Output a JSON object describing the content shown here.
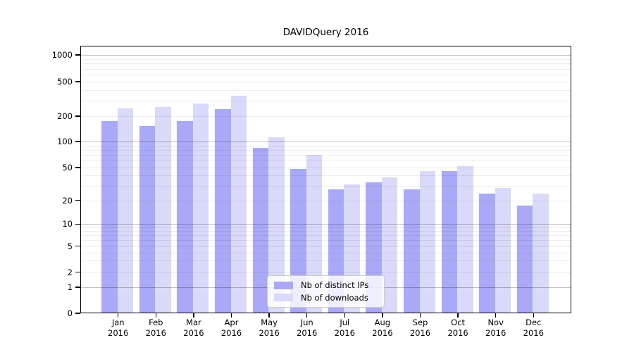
{
  "title": "DAVIDQuery 2016",
  "chart_data": {
    "type": "bar",
    "title": "DAVIDQuery 2016",
    "yscale": "symlog",
    "grid": true,
    "legend_position": "lower-center",
    "ylim": [
      0,
      1400
    ],
    "categories": [
      {
        "month": "Jan",
        "year": "2016"
      },
      {
        "month": "Feb",
        "year": "2016"
      },
      {
        "month": "Mar",
        "year": "2016"
      },
      {
        "month": "Apr",
        "year": "2016"
      },
      {
        "month": "May",
        "year": "2016"
      },
      {
        "month": "Jun",
        "year": "2016"
      },
      {
        "month": "Jul",
        "year": "2016"
      },
      {
        "month": "Aug",
        "year": "2016"
      },
      {
        "month": "Sep",
        "year": "2016"
      },
      {
        "month": "Oct",
        "year": "2016"
      },
      {
        "month": "Nov",
        "year": "2016"
      },
      {
        "month": "Dec",
        "year": "2016"
      }
    ],
    "series": [
      {
        "name": "Nb of distinct IPs",
        "color": "#a9a9f8",
        "values": [
          175,
          152,
          175,
          242,
          84,
          48,
          27,
          33,
          27,
          45,
          24,
          17
        ]
      },
      {
        "name": "Nb of downloads",
        "color": "#d9d9f9",
        "values": [
          248,
          255,
          280,
          344,
          112,
          70,
          31,
          38,
          45,
          52,
          28,
          24
        ]
      }
    ],
    "yticks": [
      1000,
      500,
      200,
      100,
      50,
      20,
      10,
      5,
      2,
      1,
      0
    ],
    "major_grid_values": [
      1000,
      100,
      10,
      1
    ],
    "minor_grid_values": [
      900,
      800,
      700,
      600,
      500,
      400,
      300,
      200,
      90,
      80,
      70,
      60,
      50,
      40,
      30,
      20,
      9,
      8,
      7,
      6,
      5,
      4,
      3,
      2
    ]
  }
}
